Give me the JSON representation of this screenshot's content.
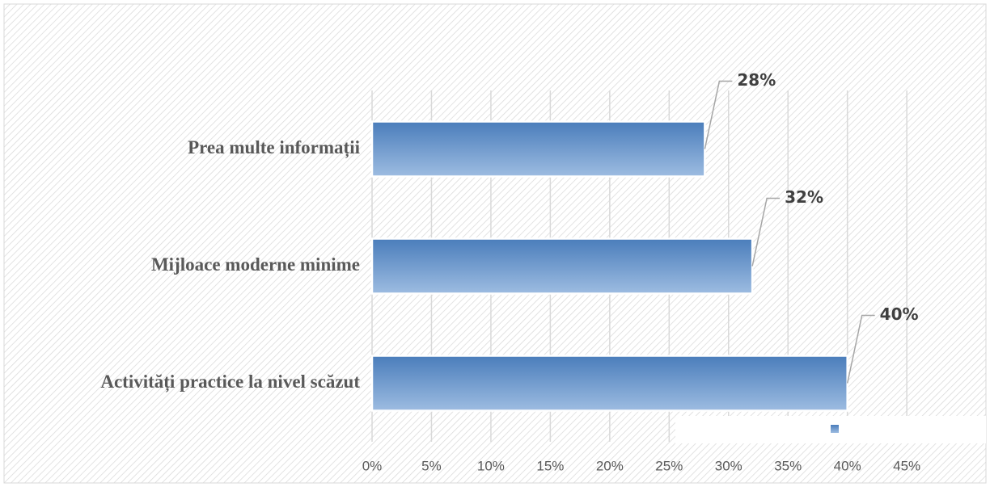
{
  "chart_data": {
    "type": "hbar",
    "categories": [
      "Prea multe informații",
      "Mijloace moderne minime",
      "Activități practice la nivel scăzut"
    ],
    "values": [
      28,
      32,
      40
    ],
    "value_labels": [
      "28%",
      "32%",
      "40%"
    ],
    "color": "#4f81bd",
    "xlim": [
      0,
      50
    ],
    "xticks": [
      {
        "value": 0,
        "label": "0%"
      },
      {
        "value": 5,
        "label": "5%"
      },
      {
        "value": 10,
        "label": "10%"
      },
      {
        "value": 15,
        "label": "15%"
      },
      {
        "value": 20,
        "label": "20%"
      },
      {
        "value": 25,
        "label": "25%"
      },
      {
        "value": 30,
        "label": "30%"
      },
      {
        "value": 35,
        "label": "35%"
      },
      {
        "value": 40,
        "label": "40%"
      },
      {
        "value": 45,
        "label": "45%"
      }
    ],
    "grid": true
  }
}
